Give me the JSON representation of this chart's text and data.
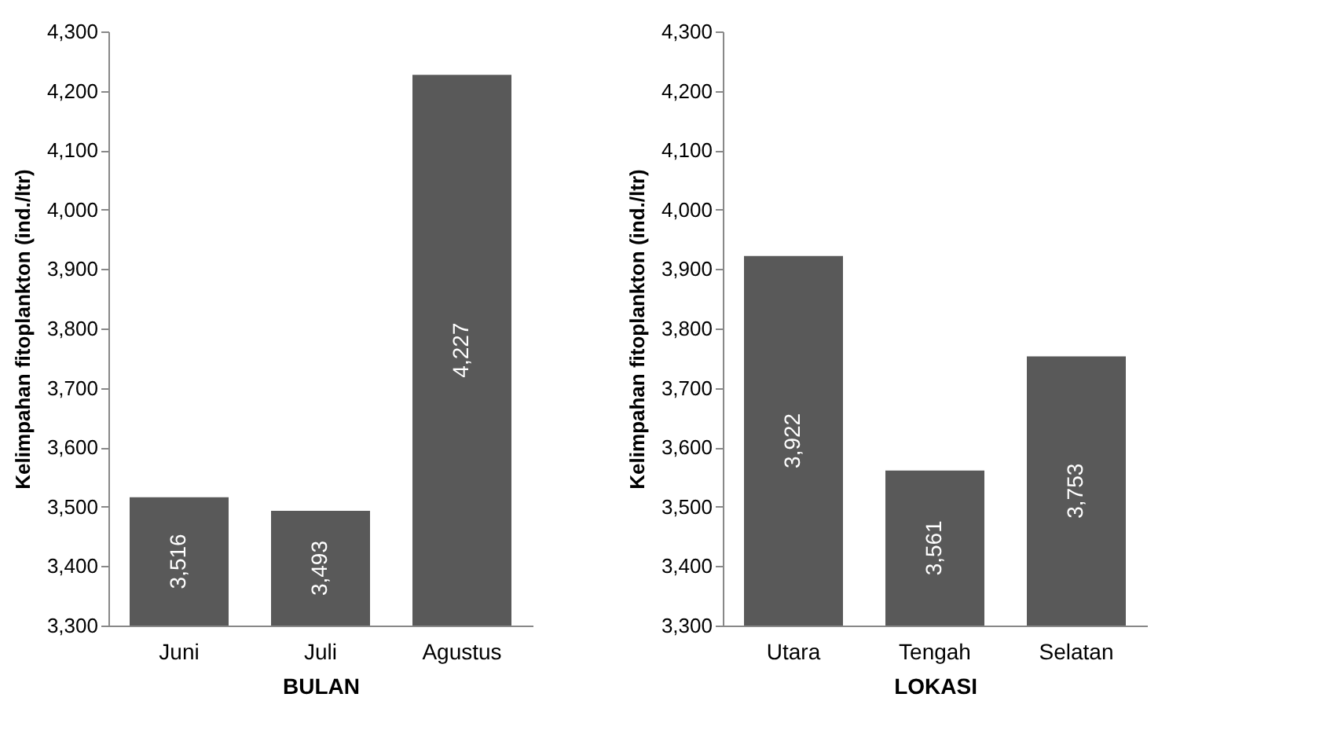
{
  "chart_data": [
    {
      "type": "bar",
      "xlabel": "BULAN",
      "ylabel": "Kelimpahan fitoplankton (ind./ltr)",
      "categories": [
        "Juni",
        "Juli",
        "Agustus"
      ],
      "values": [
        3516,
        3493,
        4227
      ],
      "color": "#595959",
      "value_labels": [
        "3,516",
        "3,493",
        "4,227"
      ],
      "ylim": [
        3300,
        4300
      ],
      "yticks": [
        {
          "value": 3300,
          "label": "3,300"
        },
        {
          "value": 3400,
          "label": "3,400"
        },
        {
          "value": 3500,
          "label": "3,500"
        },
        {
          "value": 3600,
          "label": "3,600"
        },
        {
          "value": 3700,
          "label": "3,700"
        },
        {
          "value": 3800,
          "label": "3,800"
        },
        {
          "value": 3900,
          "label": "3,900"
        },
        {
          "value": 4000,
          "label": "4,000"
        },
        {
          "value": 4100,
          "label": "4,100"
        },
        {
          "value": 4200,
          "label": "4,200"
        },
        {
          "value": 4300,
          "label": "4,300"
        }
      ]
    },
    {
      "type": "bar",
      "xlabel": "LOKASI",
      "ylabel": "Kelimpahan fitoplankton (ind./ltr)",
      "categories": [
        "Utara",
        "Tengah",
        "Selatan"
      ],
      "values": [
        3922,
        3561,
        3753
      ],
      "color": "#595959",
      "value_labels": [
        "3,922",
        "3,561",
        "3,753"
      ],
      "ylim": [
        3300,
        4300
      ],
      "yticks": [
        {
          "value": 3300,
          "label": "3,300"
        },
        {
          "value": 3400,
          "label": "3,400"
        },
        {
          "value": 3500,
          "label": "3,500"
        },
        {
          "value": 3600,
          "label": "3,600"
        },
        {
          "value": 3700,
          "label": "3,700"
        },
        {
          "value": 3800,
          "label": "3,800"
        },
        {
          "value": 3900,
          "label": "3,900"
        },
        {
          "value": 4000,
          "label": "4,000"
        },
        {
          "value": 4100,
          "label": "4,100"
        },
        {
          "value": 4200,
          "label": "4,200"
        },
        {
          "value": 4300,
          "label": "4,300"
        }
      ]
    }
  ]
}
